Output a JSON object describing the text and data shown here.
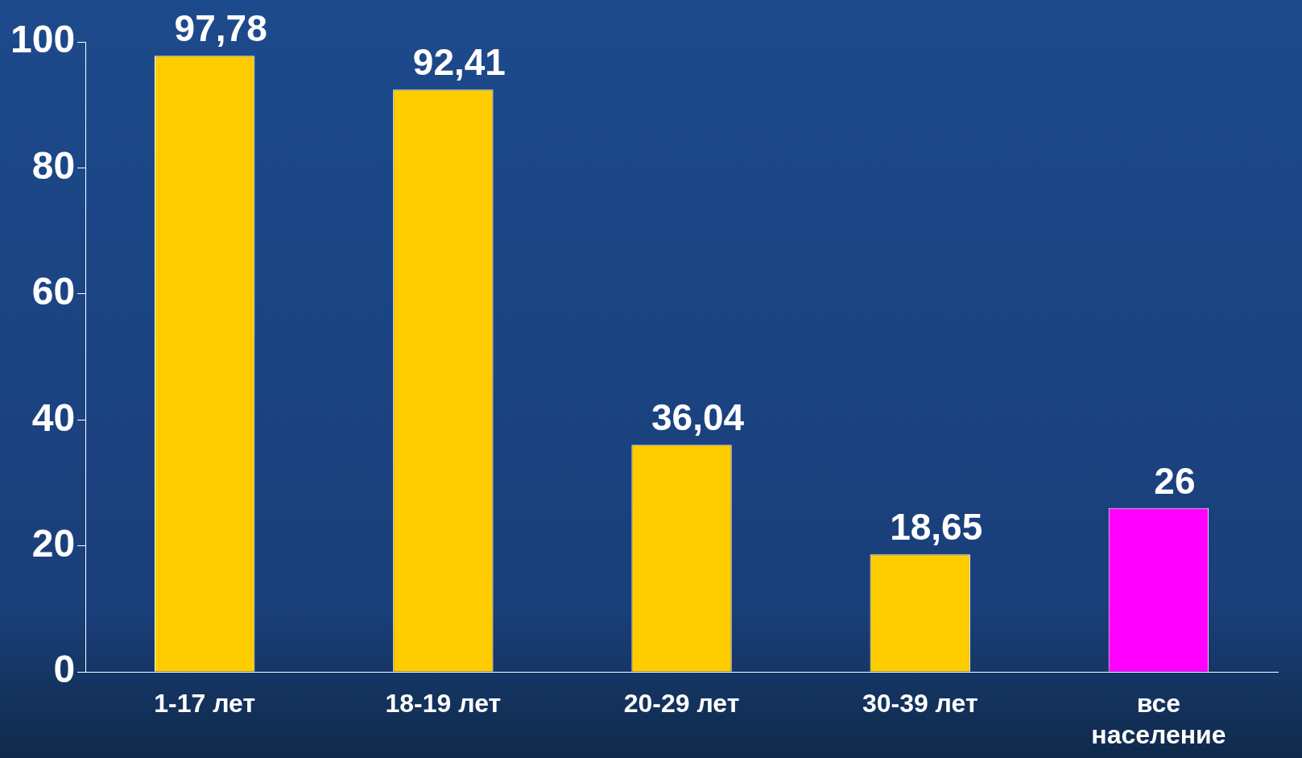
{
  "chart_data": {
    "type": "bar",
    "categories": [
      "1-17 лет",
      "18-19 лет",
      "20-29 лет",
      "30-39 лет",
      "все население"
    ],
    "values": [
      97.78,
      92.41,
      36.04,
      18.65,
      26
    ],
    "colors": [
      "#ffcc00",
      "#ffcc00",
      "#ffcc00",
      "#ffcc00",
      "#ff00ff"
    ],
    "value_labels": [
      "97,78",
      "92,41",
      "36,04",
      "18,65",
      "26"
    ],
    "ylim": [
      0,
      100
    ],
    "yticks": [
      0,
      20,
      40,
      60,
      80,
      100
    ],
    "grid": false,
    "legend": false
  }
}
